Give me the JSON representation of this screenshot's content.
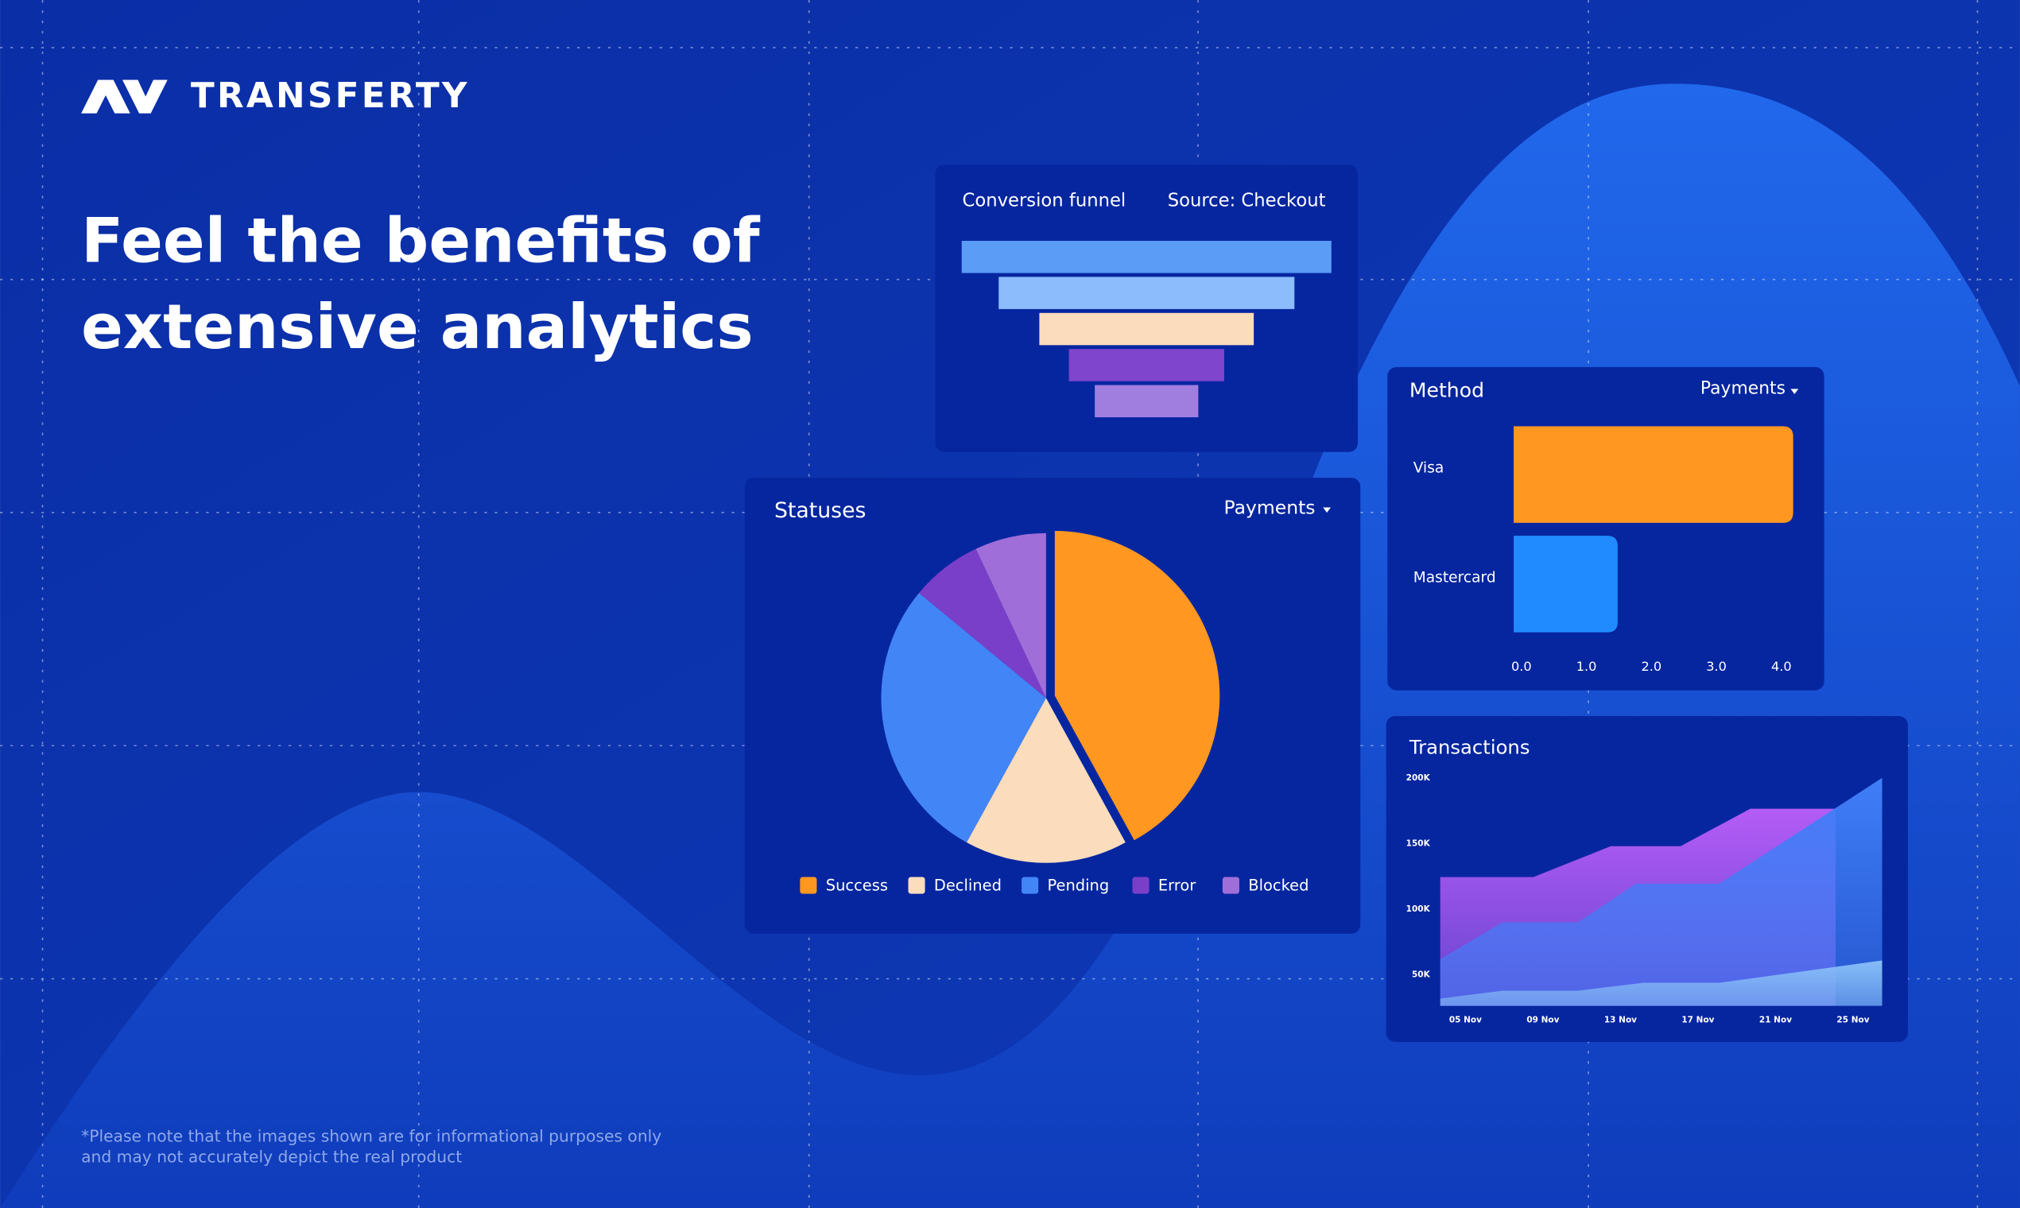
{
  "brand": "TRANSFERTY",
  "headline": [
    "Feel the benefits of",
    "extensive analytics"
  ],
  "disclaimer": [
    "*Please note that the images shown are for informational purposes only",
    "and may not accurately depict the real product"
  ],
  "chart_data": [
    {
      "type": "funnel",
      "title": "Conversion funnel",
      "source": "Source: Checkout",
      "values": [
        100,
        80,
        58,
        42,
        28
      ],
      "colors": [
        "#5b9cf6",
        "#8cbcfb",
        "#fbdcbc",
        "#7f45cc",
        "#a07ee0"
      ]
    },
    {
      "type": "pie",
      "title": "Statuses",
      "dropdown": "Payments",
      "categories": [
        "Success",
        "Declined",
        "Pending",
        "Error",
        "Blocked"
      ],
      "values": [
        42,
        16,
        28,
        7,
        7
      ],
      "colors": [
        "#ff9721",
        "#fbdcbc",
        "#4285f7",
        "#7a3fc9",
        "#a06ed9"
      ]
    },
    {
      "type": "hbar",
      "title": "Method",
      "dropdown": "Payments",
      "categories": [
        "Visa",
        "Mastercard"
      ],
      "values": [
        4.3,
        1.6
      ],
      "colors": [
        "#ff9721",
        "#1f8bff"
      ],
      "xlim": [
        0,
        4.4
      ],
      "xticks": [
        {
          "value": 0,
          "label": "0.0"
        },
        {
          "value": 1,
          "label": "1.0"
        },
        {
          "value": 2,
          "label": "2.0"
        },
        {
          "value": 3,
          "label": "3.0"
        },
        {
          "value": 4,
          "label": "4.0"
        }
      ]
    },
    {
      "type": "area",
      "title": "Transactions",
      "xlim": [
        3.7,
        26.5
      ],
      "xticks": [
        {
          "value": 5,
          "label": "05 Nov"
        },
        {
          "value": 9,
          "label": "09 Nov"
        },
        {
          "value": 13,
          "label": "13 Nov"
        },
        {
          "value": 17,
          "label": "17 Nov"
        },
        {
          "value": 21,
          "label": "21 Nov"
        },
        {
          "value": 25,
          "label": "25 Nov"
        }
      ],
      "ylim": [
        26500,
        200000
      ],
      "yticks": [
        {
          "value": 200000,
          "label": "200K"
        },
        {
          "value": 150000,
          "label": "150K"
        },
        {
          "value": 100000,
          "label": "100K"
        },
        {
          "value": 50000,
          "label": "50K"
        }
      ],
      "series": [
        {
          "color": "#b45cf6",
          "x": [
            3.7,
            8.5,
            12.5,
            16.1,
            19.7,
            24.1
          ],
          "values": [
            124500,
            124500,
            148000,
            148000,
            176500,
            176500
          ]
        },
        {
          "color": "#3f7ef7",
          "x": [
            3.7,
            6.9,
            10.8,
            13.8,
            18.1,
            26.5
          ],
          "values": [
            62000,
            90000,
            90000,
            119500,
            119500,
            200000
          ]
        },
        {
          "color": "#86bdf7",
          "x": [
            3.7,
            6.9,
            10.8,
            14.2,
            18.1,
            26.5
          ],
          "values": [
            32000,
            38000,
            38000,
            44000,
            44000,
            61000
          ]
        }
      ]
    }
  ]
}
